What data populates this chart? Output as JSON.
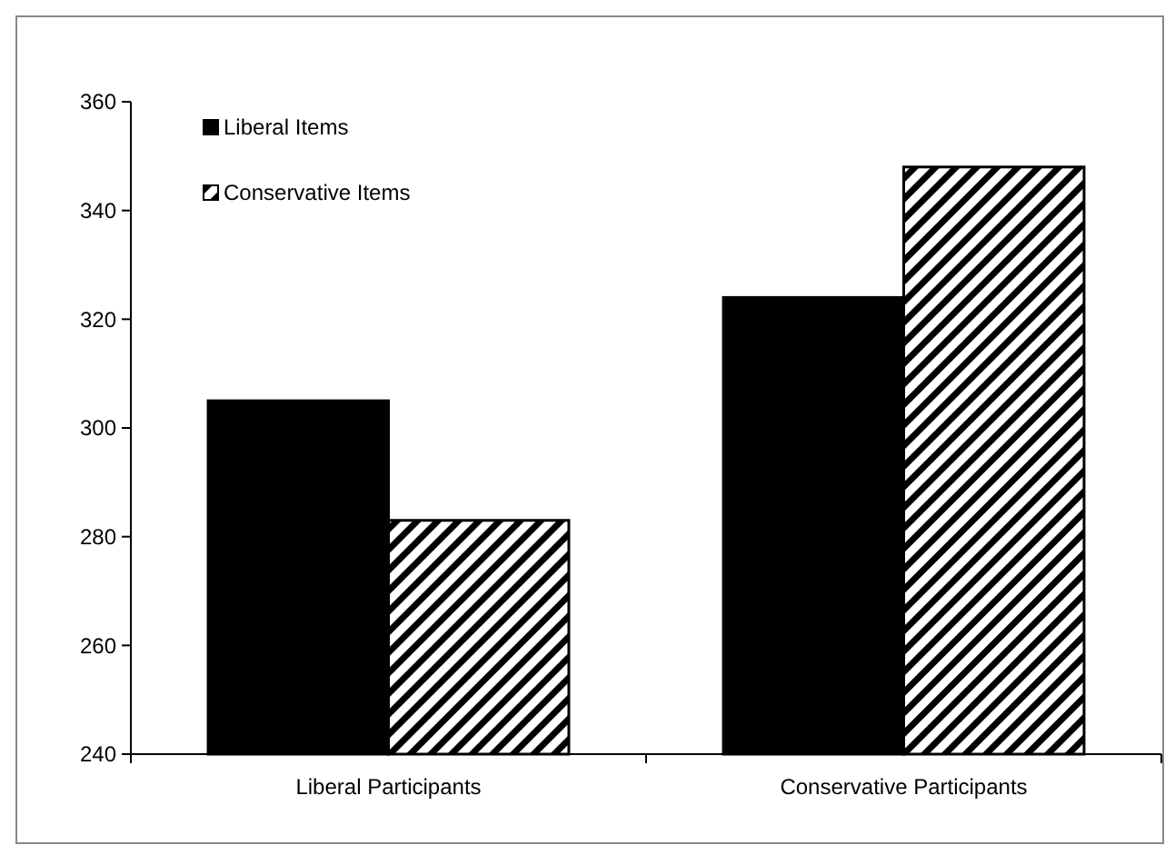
{
  "chart_data": {
    "type": "bar",
    "categories": [
      "Liberal Participants",
      "Conservative Participants"
    ],
    "series": [
      {
        "name": "Liberal Items",
        "color": "#000000",
        "values": [
          305,
          324
        ]
      },
      {
        "name": "Conservative Items",
        "color": "#000000",
        "values": [
          283,
          348
        ]
      }
    ],
    "ylim": [
      240,
      360
    ],
    "yticks": [
      240,
      260,
      280,
      300,
      320,
      340,
      360
    ],
    "grid": false,
    "legend": "top left"
  }
}
